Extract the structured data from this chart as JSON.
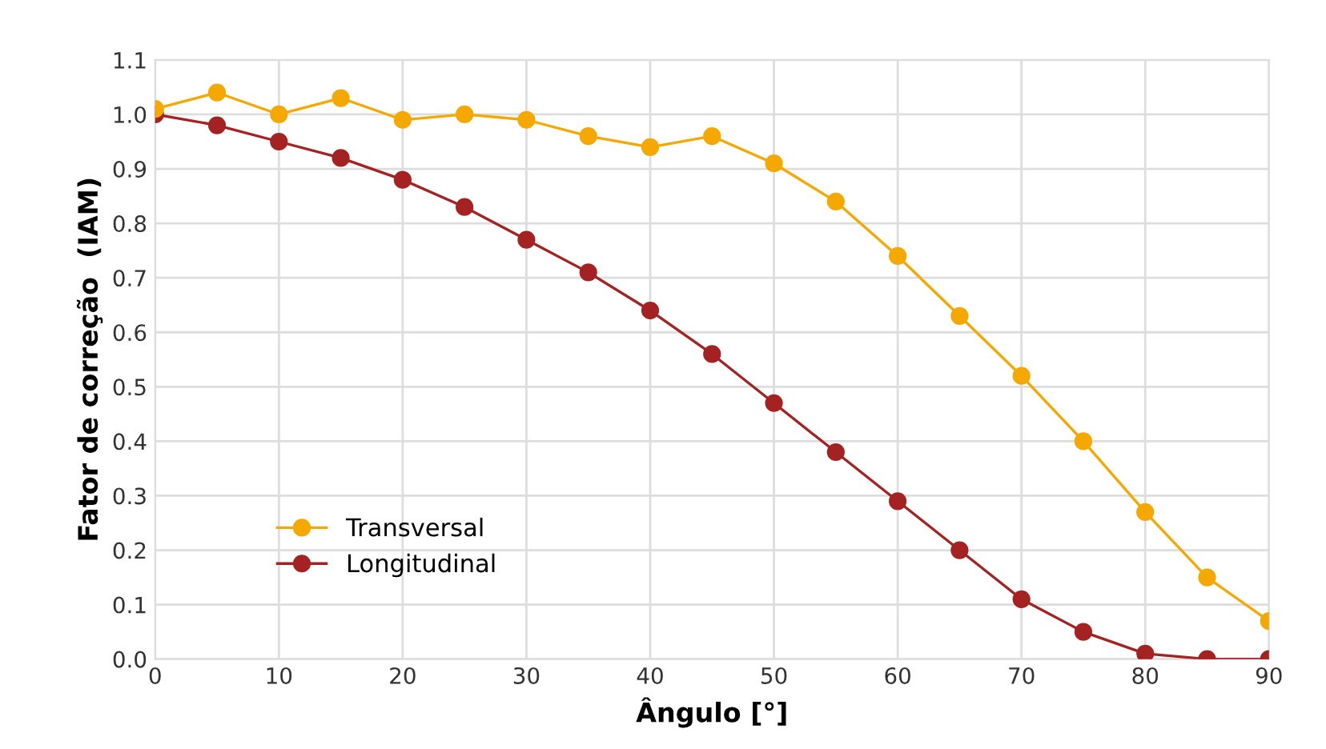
{
  "chart_data": {
    "type": "line",
    "xlabel": "Ângulo [°]",
    "ylabel": "Fator de correção  (IAM)",
    "x": [
      0,
      5,
      10,
      15,
      20,
      25,
      30,
      35,
      40,
      45,
      50,
      55,
      60,
      65,
      70,
      75,
      80,
      85,
      90
    ],
    "series": [
      {
        "name": "Transversal",
        "color": "#f5a800",
        "values": [
          1.01,
          1.04,
          1.0,
          1.03,
          0.99,
          1.0,
          0.99,
          0.96,
          0.94,
          0.96,
          0.91,
          0.84,
          0.74,
          0.63,
          0.52,
          0.4,
          0.27,
          0.15,
          0.07
        ]
      },
      {
        "name": "Longitudinal",
        "color": "#a52222",
        "values": [
          1.0,
          0.98,
          0.95,
          0.92,
          0.88,
          0.83,
          0.77,
          0.71,
          0.64,
          0.56,
          0.47,
          0.38,
          0.29,
          0.2,
          0.11,
          0.05,
          0.01,
          0.0,
          0.0
        ]
      }
    ],
    "xlim": [
      0,
      90
    ],
    "ylim": [
      0,
      1.1
    ],
    "xticks": [
      0,
      10,
      20,
      30,
      40,
      50,
      60,
      70,
      80,
      90
    ],
    "yticks": [
      {
        "value": 0,
        "label": "0.0"
      },
      0.1,
      0.2,
      0.3,
      0.4,
      0.5,
      0.6,
      0.7,
      0.8,
      0.9,
      {
        "value": 1,
        "label": "1.0"
      },
      1.1
    ],
    "grid": true,
    "legend": "bottom left",
    "marker": "circle",
    "line_style": "solid"
  }
}
